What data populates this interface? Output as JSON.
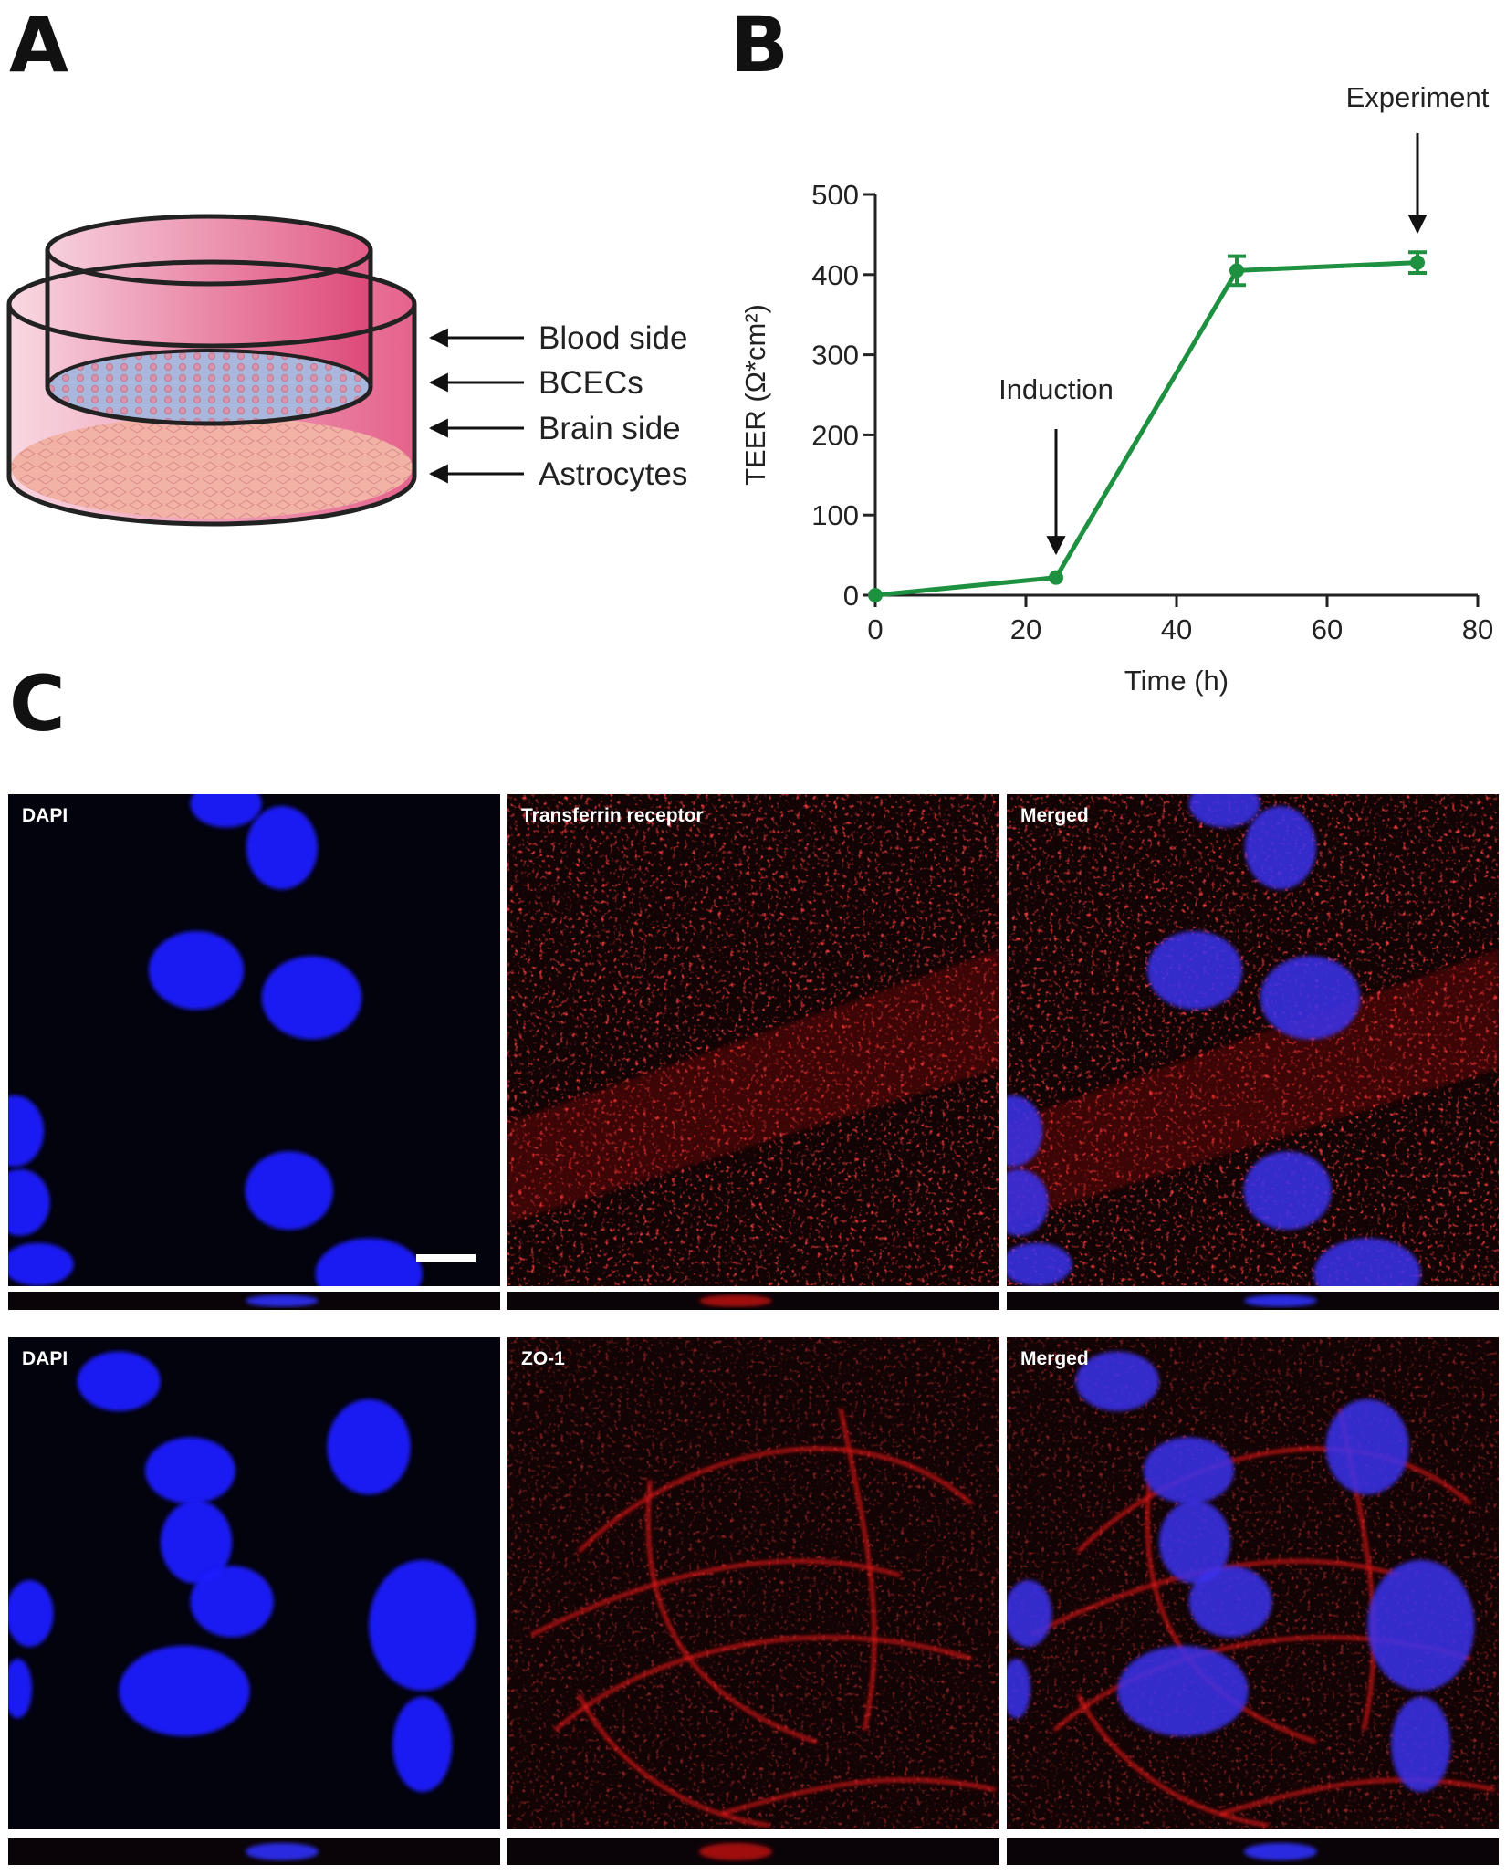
{
  "panels": {
    "a": "A",
    "b": "B",
    "c": "C"
  },
  "diagram": {
    "labels": [
      "Blood side",
      "BCECs",
      "Brain side",
      "Astrocytes"
    ]
  },
  "chart_data": {
    "type": "line",
    "xlabel": "Time (h)",
    "ylabel": "TEER (Ω*cm²)",
    "x": [
      0,
      24,
      48,
      72
    ],
    "series": [
      {
        "color": "#1e9140",
        "values": [
          0,
          22,
          405,
          415
        ],
        "errors": [
          null,
          null,
          18,
          13
        ]
      }
    ],
    "xlim": [
      0,
      80
    ],
    "ylim": [
      0,
      500
    ],
    "xticks": [
      0,
      20,
      40,
      60,
      80
    ],
    "yticks": [
      0,
      100,
      200,
      300,
      400,
      500
    ],
    "annotations": [
      "Induction",
      "Experiment"
    ]
  },
  "micrographs": {
    "rows": [
      [
        "DAPI",
        "Transferrin receptor",
        "Merged"
      ],
      [
        "DAPI",
        "ZO-1",
        "Merged"
      ]
    ]
  }
}
